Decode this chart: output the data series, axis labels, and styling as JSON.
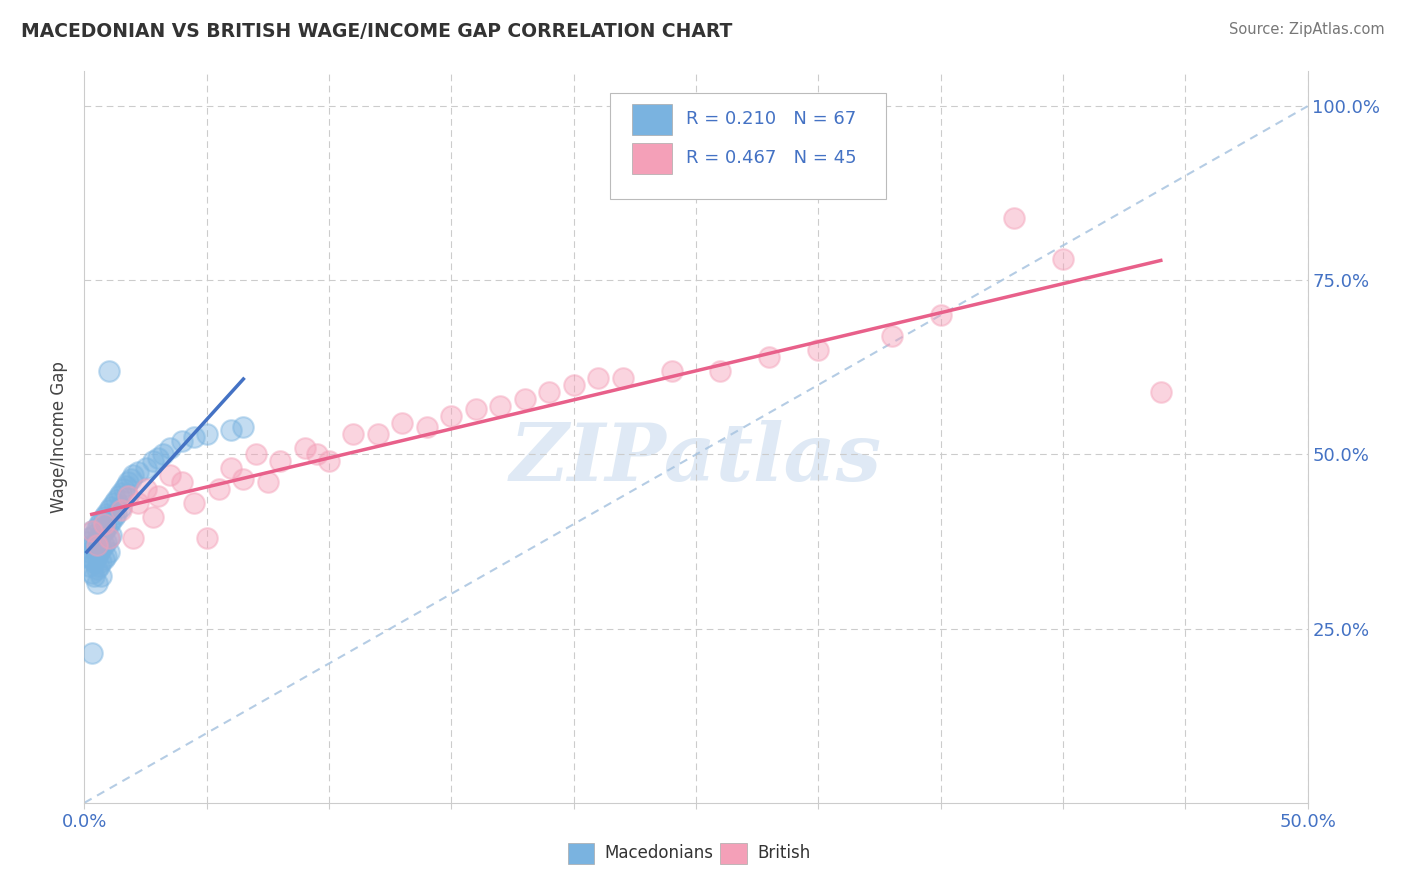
{
  "title": "MACEDONIAN VS BRITISH WAGE/INCOME GAP CORRELATION CHART",
  "source": "Source: ZipAtlas.com",
  "ylabel": "Wage/Income Gap",
  "xlabel": "",
  "xlim": [
    0.0,
    0.5
  ],
  "ylim": [
    0.0,
    1.05
  ],
  "macedonian_color": "#7ab3e0",
  "british_color": "#f4a0b8",
  "macedonian_line_color": "#4472c4",
  "british_line_color": "#e8608a",
  "diag_line_color": "#a8c4e0",
  "R_macedonian": 0.21,
  "N_macedonian": 67,
  "R_british": 0.467,
  "N_british": 45,
  "watermark": "ZIPatlas",
  "background_color": "#ffffff",
  "macedonian_x": [
    0.001,
    0.001,
    0.002,
    0.002,
    0.002,
    0.003,
    0.003,
    0.003,
    0.003,
    0.004,
    0.004,
    0.004,
    0.004,
    0.005,
    0.005,
    0.005,
    0.005,
    0.005,
    0.006,
    0.006,
    0.006,
    0.006,
    0.007,
    0.007,
    0.007,
    0.007,
    0.007,
    0.008,
    0.008,
    0.008,
    0.008,
    0.009,
    0.009,
    0.009,
    0.009,
    0.01,
    0.01,
    0.01,
    0.01,
    0.011,
    0.011,
    0.011,
    0.012,
    0.012,
    0.013,
    0.013,
    0.014,
    0.015,
    0.015,
    0.016,
    0.017,
    0.018,
    0.019,
    0.02,
    0.022,
    0.025,
    0.028,
    0.03,
    0.032,
    0.035,
    0.04,
    0.045,
    0.05,
    0.06,
    0.065,
    0.01,
    0.003
  ],
  "macedonian_y": [
    0.375,
    0.355,
    0.38,
    0.36,
    0.34,
    0.39,
    0.37,
    0.35,
    0.33,
    0.385,
    0.365,
    0.345,
    0.325,
    0.395,
    0.375,
    0.355,
    0.335,
    0.315,
    0.4,
    0.38,
    0.36,
    0.34,
    0.405,
    0.385,
    0.365,
    0.345,
    0.325,
    0.41,
    0.39,
    0.37,
    0.35,
    0.415,
    0.395,
    0.375,
    0.355,
    0.42,
    0.4,
    0.38,
    0.36,
    0.425,
    0.405,
    0.385,
    0.43,
    0.41,
    0.435,
    0.415,
    0.44,
    0.445,
    0.425,
    0.45,
    0.455,
    0.46,
    0.465,
    0.47,
    0.475,
    0.48,
    0.49,
    0.495,
    0.5,
    0.51,
    0.52,
    0.525,
    0.53,
    0.535,
    0.54,
    0.62,
    0.215
  ],
  "british_x": [
    0.003,
    0.005,
    0.008,
    0.01,
    0.015,
    0.018,
    0.02,
    0.022,
    0.025,
    0.028,
    0.03,
    0.035,
    0.04,
    0.045,
    0.05,
    0.055,
    0.06,
    0.065,
    0.07,
    0.075,
    0.08,
    0.09,
    0.095,
    0.1,
    0.11,
    0.12,
    0.13,
    0.14,
    0.15,
    0.16,
    0.17,
    0.18,
    0.19,
    0.2,
    0.21,
    0.22,
    0.24,
    0.26,
    0.28,
    0.3,
    0.33,
    0.35,
    0.38,
    0.4,
    0.44
  ],
  "british_y": [
    0.39,
    0.37,
    0.4,
    0.38,
    0.42,
    0.44,
    0.38,
    0.43,
    0.45,
    0.41,
    0.44,
    0.47,
    0.46,
    0.43,
    0.38,
    0.45,
    0.48,
    0.465,
    0.5,
    0.46,
    0.49,
    0.51,
    0.5,
    0.49,
    0.53,
    0.53,
    0.545,
    0.54,
    0.555,
    0.565,
    0.57,
    0.58,
    0.59,
    0.6,
    0.61,
    0.61,
    0.62,
    0.62,
    0.64,
    0.65,
    0.67,
    0.7,
    0.84,
    0.78,
    0.59
  ],
  "ytick_positions": [
    0.25,
    0.5,
    0.75,
    1.0
  ],
  "ytick_labels": [
    "25.0%",
    "50.0%",
    "75.0%",
    "100.0%"
  ],
  "xtick_positions": [
    0.0,
    0.05,
    0.1,
    0.15,
    0.2,
    0.25,
    0.3,
    0.35,
    0.4,
    0.45,
    0.5
  ],
  "xtick_labels_show": [
    "0.0%",
    "",
    "",
    "",
    "",
    "",
    "",
    "",
    "",
    "",
    "50.0%"
  ]
}
